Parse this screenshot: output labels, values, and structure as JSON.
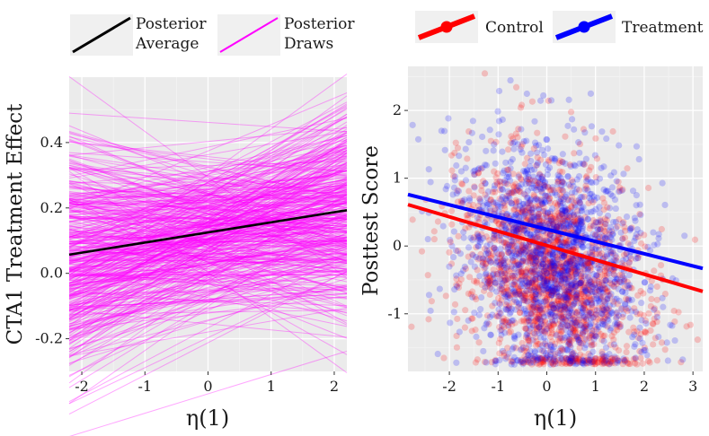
{
  "chart_data": [
    {
      "type": "line",
      "panel": "left",
      "xlabel": "η(1)",
      "ylabel": "CTA1 Treatment Effect",
      "xlim": [
        -2.2,
        2.2
      ],
      "ylim": [
        -0.3,
        0.6
      ],
      "x_ticks": [
        "-2",
        "-1",
        "0",
        "1",
        "2"
      ],
      "y_ticks": [
        "-0.2",
        "0.0",
        "0.2",
        "0.4"
      ],
      "grid": true,
      "legend_position": "top",
      "series": [
        {
          "name": "Posterior Draws",
          "legend_lines": [
            "Posterior",
            "Draws"
          ],
          "color": "#ff00ff",
          "draw_count": 400,
          "fan_x_center": 0.4,
          "fan_y_center": 0.13,
          "fan_spread_at_center": 0.28,
          "slope_range": [
            -0.14,
            0.14
          ]
        },
        {
          "name": "Posterior Average",
          "legend_lines": [
            "Posterior",
            "Average"
          ],
          "color": "#000000",
          "x": [
            -2.2,
            2.2
          ],
          "y": [
            0.057,
            0.193
          ]
        }
      ]
    },
    {
      "type": "scatter",
      "panel": "right",
      "xlabel": "η(1)",
      "ylabel": "Posttest Score",
      "xlim": [
        -2.85,
        3.2
      ],
      "ylim": [
        -1.85,
        2.65
      ],
      "x_ticks": [
        "-2",
        "-1",
        "0",
        "1",
        "2",
        "3"
      ],
      "y_ticks": [
        "-1",
        "0",
        "1",
        "2"
      ],
      "grid": true,
      "legend_position": "top",
      "series": [
        {
          "name": "Control",
          "color": "#ff0000",
          "point_count": 1600,
          "fit": {
            "x": [
              -2.85,
              3.2
            ],
            "y": [
              0.61,
              -0.67
            ]
          }
        },
        {
          "name": "Treatment",
          "color": "#0000ff",
          "point_count": 1600,
          "fit": {
            "x": [
              -2.85,
              3.2
            ],
            "y": [
              0.76,
              -0.33
            ]
          }
        }
      ]
    }
  ]
}
